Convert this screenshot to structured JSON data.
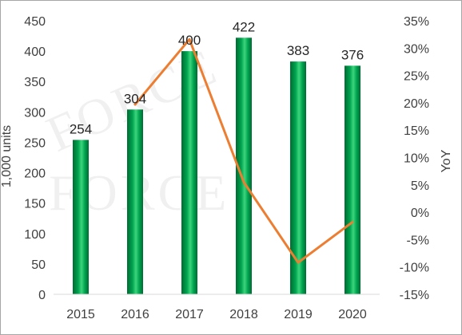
{
  "chart_data": {
    "type": "bar",
    "categories": [
      "2015",
      "2016",
      "2017",
      "2018",
      "2019",
      "2020"
    ],
    "series": [
      {
        "type": "bar",
        "axis": "left",
        "values": [
          254,
          304,
          400,
          422,
          383,
          376
        ],
        "labels": [
          "254",
          "304",
          "400",
          "422",
          "383",
          "376"
        ],
        "color": "#00a651"
      },
      {
        "type": "line",
        "axis": "right",
        "values": [
          null,
          19.7,
          31.6,
          5.5,
          -9.2,
          -1.8
        ],
        "color": "#ed7d31"
      }
    ],
    "ylabel": "1,000 units",
    "y2label": "YoY",
    "ylim": [
      0,
      450
    ],
    "y2lim": [
      -15,
      35
    ],
    "yticks": [
      "0",
      "50",
      "100",
      "150",
      "200",
      "250",
      "300",
      "350",
      "400",
      "450"
    ],
    "y2ticks": [
      "-15%",
      "-10%",
      "-5%",
      "0%",
      "5%",
      "10%",
      "15%",
      "20%",
      "25%",
      "30%",
      "35%"
    ],
    "grid": false,
    "legend": "none",
    "watermark": [
      "FORCE",
      "FORCE"
    ]
  }
}
